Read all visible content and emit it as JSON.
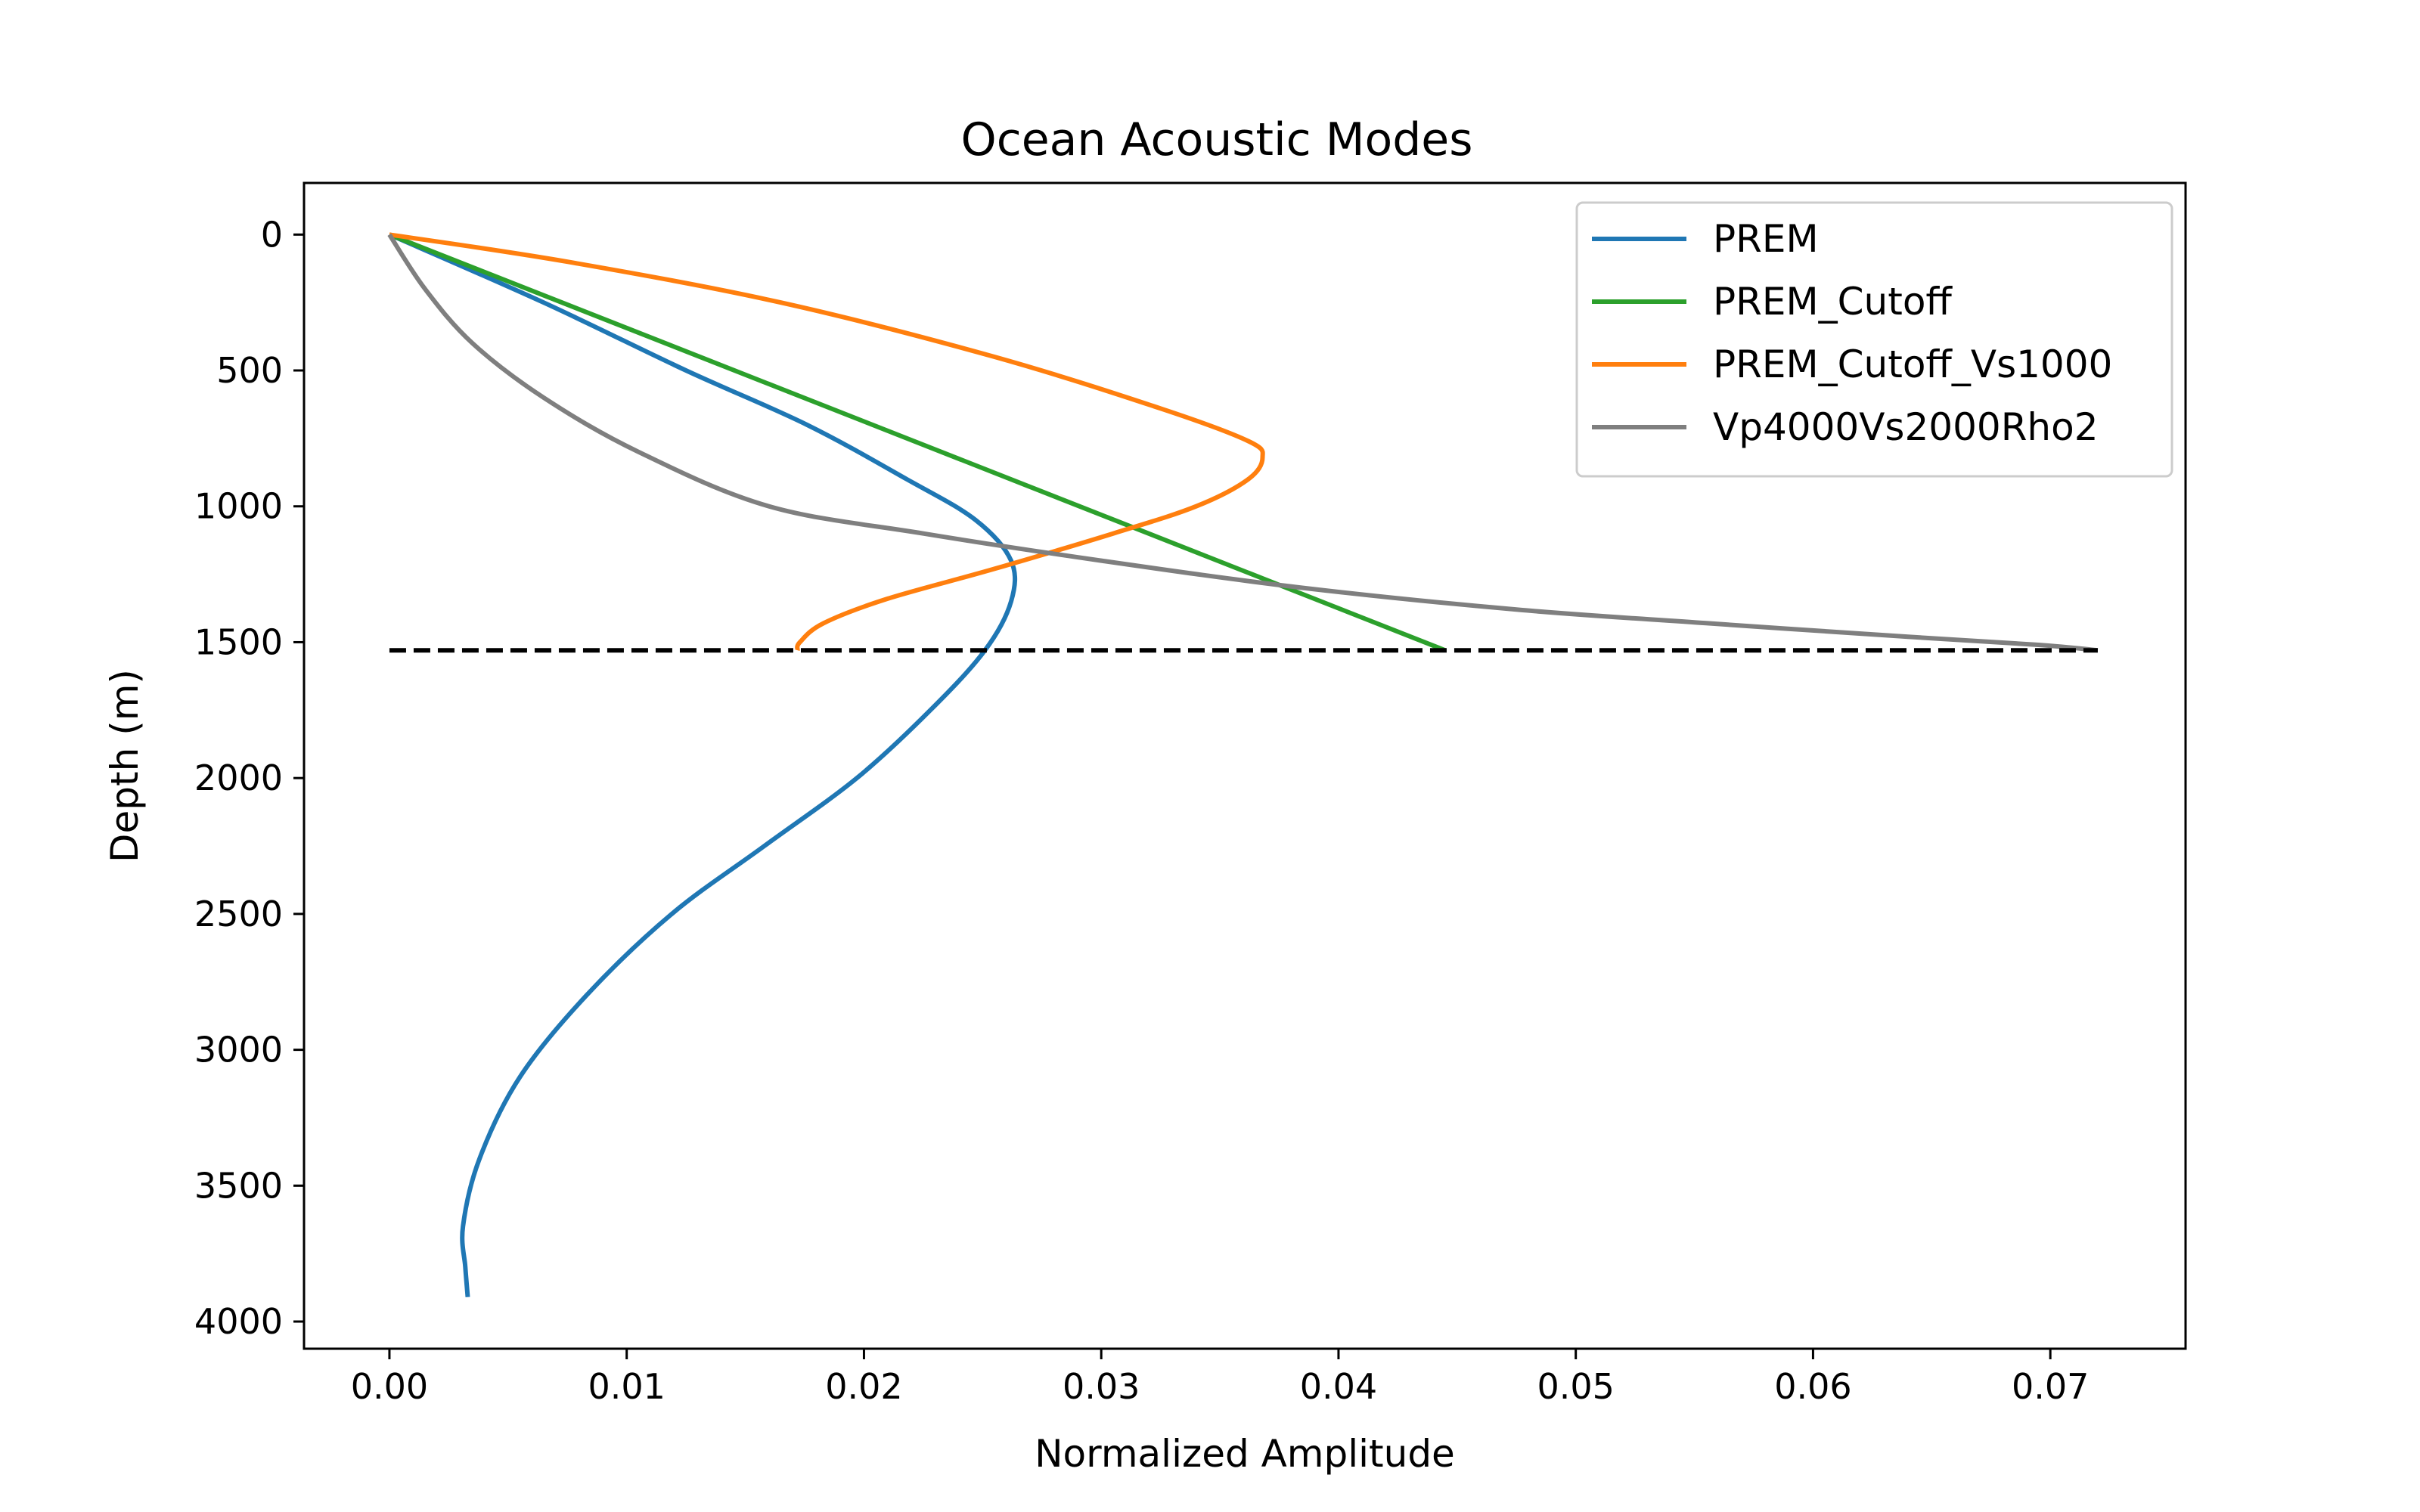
{
  "chart_data": {
    "type": "line",
    "title": "Ocean Acoustic Modes",
    "xlabel": "Normalized Amplitude",
    "ylabel": "Depth (m)",
    "xlim": [
      -0.0036,
      0.0757
    ],
    "ylim": [
      4100,
      -190
    ],
    "y_inverted": true,
    "grid": false,
    "legend_position": "top-right",
    "xticks": [
      0.0,
      0.01,
      0.02,
      0.03,
      0.04,
      0.05,
      0.06,
      0.07
    ],
    "xtick_labels": [
      "0.00",
      "0.01",
      "0.02",
      "0.03",
      "0.04",
      "0.05",
      "0.06",
      "0.07"
    ],
    "yticks": [
      0,
      500,
      1000,
      1500,
      2000,
      2500,
      3000,
      3500,
      4000
    ],
    "ytick_labels": [
      "0",
      "500",
      "1000",
      "1500",
      "2000",
      "2500",
      "3000",
      "3500",
      "4000"
    ],
    "series": [
      {
        "name": "PREM",
        "color": "#1f77b4",
        "points": [
          [
            0.0,
            0
          ],
          [
            0.0065,
            250
          ],
          [
            0.0125,
            500
          ],
          [
            0.0176,
            700
          ],
          [
            0.0218,
            900
          ],
          [
            0.0247,
            1050
          ],
          [
            0.0262,
            1200
          ],
          [
            0.0262,
            1350
          ],
          [
            0.0251,
            1530
          ],
          [
            0.0228,
            1750
          ],
          [
            0.0197,
            2000
          ],
          [
            0.0158,
            2250
          ],
          [
            0.0119,
            2500
          ],
          [
            0.0083,
            2800
          ],
          [
            0.0055,
            3100
          ],
          [
            0.0038,
            3400
          ],
          [
            0.0031,
            3650
          ],
          [
            0.0032,
            3800
          ],
          [
            0.0033,
            3910
          ]
        ]
      },
      {
        "name": "PREM_Cutoff",
        "color": "#2ca02c",
        "points": [
          [
            0.0,
            0
          ],
          [
            0.0445,
            1530
          ]
        ]
      },
      {
        "name": "PREM_Cutoff_Vs1000",
        "color": "#ff7f0e",
        "points": [
          [
            0.0,
            0
          ],
          [
            0.0075,
            100
          ],
          [
            0.0165,
            250
          ],
          [
            0.0255,
            450
          ],
          [
            0.0325,
            640
          ],
          [
            0.0362,
            760
          ],
          [
            0.0368,
            820
          ],
          [
            0.0362,
            900
          ],
          [
            0.034,
            1000
          ],
          [
            0.0305,
            1100
          ],
          [
            0.0255,
            1230
          ],
          [
            0.021,
            1340
          ],
          [
            0.0183,
            1430
          ],
          [
            0.0173,
            1500
          ],
          [
            0.0172,
            1530
          ]
        ]
      },
      {
        "name": "Vp4000Vs2000Rho2",
        "color": "#7f7f7f",
        "points": [
          [
            0.0,
            0
          ],
          [
            0.0015,
            200
          ],
          [
            0.0035,
            400
          ],
          [
            0.0065,
            600
          ],
          [
            0.0105,
            800
          ],
          [
            0.016,
            1000
          ],
          [
            0.0225,
            1100
          ],
          [
            0.03,
            1200
          ],
          [
            0.0385,
            1300
          ],
          [
            0.0475,
            1380
          ],
          [
            0.0555,
            1430
          ],
          [
            0.064,
            1480
          ],
          [
            0.0695,
            1510
          ],
          [
            0.072,
            1530
          ]
        ]
      }
    ],
    "reference_line": {
      "style": "dashed",
      "color": "#000000",
      "y": 1530,
      "x_range": [
        0.0,
        0.072
      ]
    }
  }
}
